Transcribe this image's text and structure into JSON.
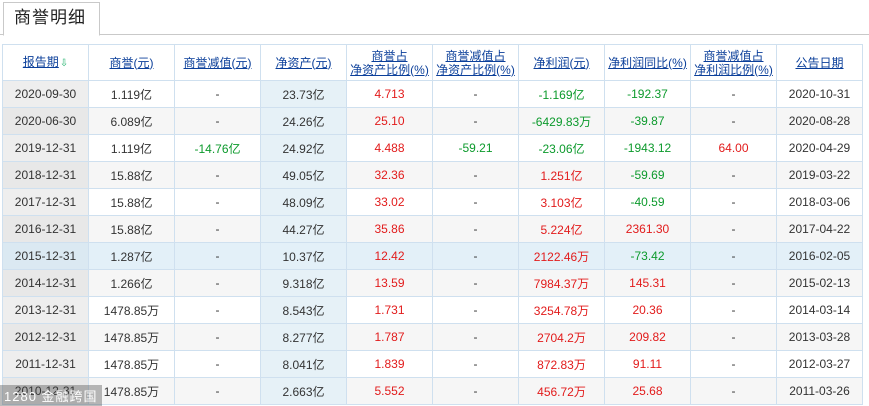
{
  "tab": {
    "label": "商誉明细"
  },
  "table": {
    "headers": [
      "报告期",
      "商誉(元)",
      "商誉减值(元)",
      "净资产(元)",
      "商誉占\n净资产比例(%)",
      "商誉减值占\n净资产比例(%)",
      "净利润(元)",
      "净利润同比(%)",
      "商誉减值占\n净利润比例(%)",
      "公告日期"
    ],
    "rows": [
      [
        "2020-09-30",
        "1.119亿",
        "-",
        "23.73亿",
        "4.713",
        "-",
        "-1.169亿",
        "-192.37",
        "-",
        "2020-10-31"
      ],
      [
        "2020-06-30",
        "6.089亿",
        "-",
        "24.26亿",
        "25.10",
        "-",
        "-6429.83万",
        "-39.87",
        "-",
        "2020-08-28"
      ],
      [
        "2019-12-31",
        "1.119亿",
        "-14.76亿",
        "24.92亿",
        "4.488",
        "-59.21",
        "-23.06亿",
        "-1943.12",
        "64.00",
        "2020-04-29"
      ],
      [
        "2018-12-31",
        "15.88亿",
        "-",
        "49.05亿",
        "32.36",
        "-",
        "1.251亿",
        "-59.69",
        "-",
        "2019-03-22"
      ],
      [
        "2017-12-31",
        "15.88亿",
        "-",
        "48.09亿",
        "33.02",
        "-",
        "3.103亿",
        "-40.59",
        "-",
        "2018-03-06"
      ],
      [
        "2016-12-31",
        "15.88亿",
        "-",
        "44.27亿",
        "35.86",
        "-",
        "5.224亿",
        "2361.30",
        "-",
        "2017-04-22"
      ],
      [
        "2015-12-31",
        "1.287亿",
        "-",
        "10.37亿",
        "12.42",
        "-",
        "2122.46万",
        "-73.42",
        "-",
        "2016-02-05"
      ],
      [
        "2014-12-31",
        "1.266亿",
        "-",
        "9.318亿",
        "13.59",
        "-",
        "7984.37万",
        "145.31",
        "-",
        "2015-02-13"
      ],
      [
        "2013-12-31",
        "1478.85万",
        "-",
        "8.543亿",
        "1.731",
        "-",
        "3254.78万",
        "20.36",
        "-",
        "2014-03-14"
      ],
      [
        "2012-12-31",
        "1478.85万",
        "-",
        "8.277亿",
        "1.787",
        "-",
        "2704.2万",
        "209.82",
        "-",
        "2013-03-28"
      ],
      [
        "2011-12-31",
        "1478.85万",
        "-",
        "8.041亿",
        "1.839",
        "-",
        "872.83万",
        "91.11",
        "-",
        "2012-03-27"
      ],
      [
        "2010-12-31",
        "1478.85万",
        "-",
        "2.663亿",
        "5.552",
        "-",
        "456.72万",
        "25.68",
        "-",
        "2011-03-26"
      ]
    ]
  },
  "watermark": "1280 金融跨国",
  "colors": {
    "link": "#0b3f9a",
    "up": "#e21b1b",
    "down": "#0c9a2c",
    "sort_icon": "#2bb673"
  },
  "icons": {
    "sort": "sort-down-arrow-icon"
  }
}
